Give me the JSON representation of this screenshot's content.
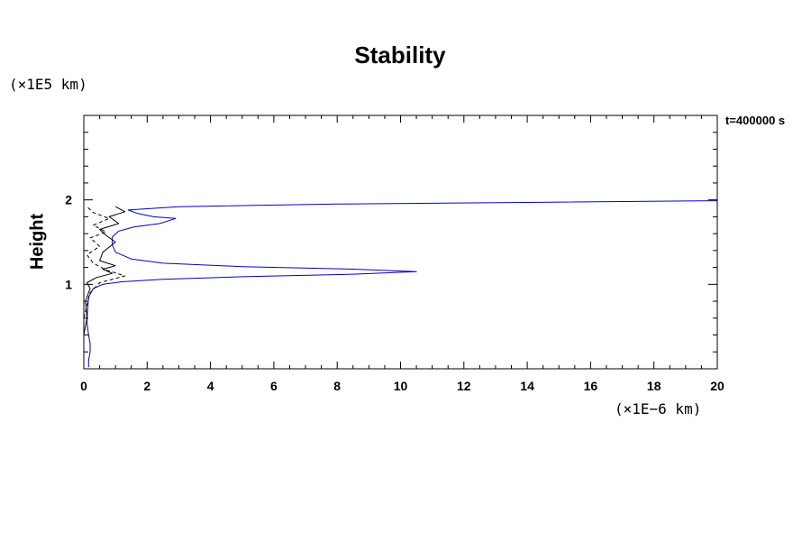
{
  "chart_data": {
    "type": "line",
    "title": "Stability",
    "ylabel": "Height",
    "y_multiplier": "(×1E5 km)",
    "x_multiplier": "(×1E−6 km)",
    "annotation": "t=400000 s",
    "xlim": [
      0,
      20
    ],
    "ylim": [
      0,
      3
    ],
    "x_ticks": [
      0,
      2,
      4,
      6,
      8,
      10,
      12,
      14,
      16,
      18,
      20
    ],
    "y_ticks": [
      1,
      2
    ],
    "grid": false,
    "colors": {
      "blue": "#0000cc",
      "black": "#000000"
    },
    "series": [
      {
        "style": "solid",
        "color": "#0000cc",
        "x": [
          0.15,
          0.15,
          0.2,
          0.2,
          0.15,
          0.1,
          0.12,
          0.15,
          0.3,
          0.6,
          1.2,
          2.5,
          5.0,
          8.5,
          10.5,
          8.5,
          5.0,
          2.5,
          1.5,
          1.0,
          0.9,
          0.9,
          1.1,
          1.6,
          2.0,
          2.4,
          2.9,
          2.2,
          1.7,
          1.4,
          3.0,
          8.0,
          14.0,
          20.0
        ],
        "y": [
          0.02,
          0.1,
          0.2,
          0.3,
          0.4,
          0.55,
          0.7,
          0.85,
          0.95,
          1.0,
          1.03,
          1.06,
          1.09,
          1.12,
          1.15,
          1.18,
          1.21,
          1.25,
          1.3,
          1.38,
          1.47,
          1.56,
          1.63,
          1.68,
          1.7,
          1.72,
          1.78,
          1.8,
          1.84,
          1.88,
          1.92,
          1.95,
          1.97,
          1.99
        ]
      },
      {
        "style": "solid",
        "color": "#000000",
        "x": [
          0.0,
          0.1,
          0.05,
          0.2,
          0.1,
          0.4,
          0.9,
          0.6,
          1.0,
          0.5,
          0.6,
          1.0,
          0.7,
          0.5,
          1.1,
          0.8,
          1.3,
          1.0
        ],
        "y": [
          0.4,
          0.6,
          0.8,
          0.95,
          1.02,
          1.08,
          1.13,
          1.18,
          1.22,
          1.28,
          1.38,
          1.5,
          1.58,
          1.65,
          1.72,
          1.8,
          1.86,
          1.92
        ]
      },
      {
        "style": "dashed",
        "color": "#000000",
        "x": [
          0.0,
          0.2,
          0.5,
          1.3,
          0.7,
          0.3,
          0.1,
          0.5,
          0.2,
          0.7,
          0.3,
          0.8,
          0.3,
          0.1
        ],
        "y": [
          0.6,
          0.9,
          1.02,
          1.1,
          1.17,
          1.25,
          1.35,
          1.45,
          1.55,
          1.62,
          1.7,
          1.78,
          1.85,
          1.92
        ]
      }
    ]
  }
}
